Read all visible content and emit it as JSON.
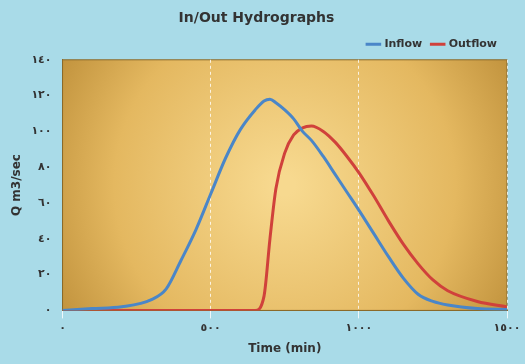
{
  "chart_data": {
    "type": "line",
    "title": "In/Out Hydrographs",
    "x_label": "Time (min)",
    "y_label": "Q m3/sec",
    "x": [
      0,
      100,
      200,
      300,
      350,
      400,
      450,
      500,
      550,
      600,
      650,
      680,
      700,
      720,
      750,
      780,
      810,
      840,
      880,
      920,
      960,
      1000,
      1050,
      1100,
      1150,
      1200,
      1250,
      1300,
      1400,
      1500
    ],
    "series": [
      {
        "name": "Inflow",
        "color": "#4a86c8",
        "values": [
          0,
          1,
          2,
          6,
          12,
          28,
          45,
          65,
          85,
          101,
          112,
          117,
          118,
          116,
          112,
          107,
          100,
          95,
          86,
          76,
          66,
          56,
          43,
          30,
          18,
          9,
          5,
          3,
          1,
          0.5
        ]
      },
      {
        "name": "Outflow",
        "color": "#d0413b",
        "values": [
          0,
          0,
          0,
          0,
          0,
          0,
          0,
          0,
          0,
          0,
          0,
          8,
          40,
          68,
          88,
          98,
          102,
          103,
          100,
          94,
          86,
          77,
          64,
          50,
          37,
          26,
          17,
          11,
          5,
          2
        ]
      }
    ],
    "xlim": [
      0,
      1500
    ],
    "xticks": [
      {
        "value": 0,
        "label": "٠"
      },
      {
        "value": 500,
        "label": "٥٠٠"
      },
      {
        "value": 1000,
        "label": "١٠٠٠"
      },
      {
        "value": 1500,
        "label": "١٥٠٠"
      }
    ],
    "ylim": [
      0,
      140
    ],
    "yticks": [
      {
        "value": 0,
        "label": "٠"
      },
      {
        "value": 20,
        "label": "٢٠"
      },
      {
        "value": 40,
        "label": "٤٠"
      },
      {
        "value": 60,
        "label": "٦٠"
      },
      {
        "value": 80,
        "label": "٨٠"
      },
      {
        "value": 100,
        "label": "١٠٠"
      },
      {
        "value": 120,
        "label": "١٢٠"
      },
      {
        "value": 140,
        "label": "١٤٠"
      }
    ],
    "grid": true,
    "legend": "top-right"
  }
}
